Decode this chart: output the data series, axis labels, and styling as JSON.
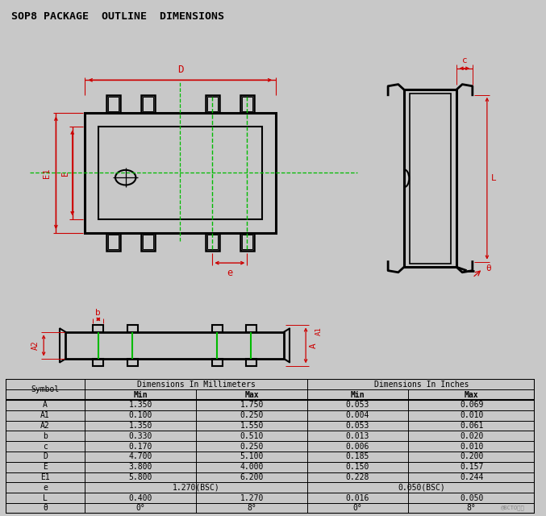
{
  "title": "SOP8 PACKAGE  OUTLINE  DIMENSIONS",
  "bg_color": "#c8c8c8",
  "table_data": [
    [
      "A",
      "1.350",
      "1.750",
      "0.053",
      "0.069"
    ],
    [
      "A1",
      "0.100",
      "0.250",
      "0.004",
      "0.010"
    ],
    [
      "A2",
      "1.350",
      "1.550",
      "0.053",
      "0.061"
    ],
    [
      "b",
      "0.330",
      "0.510",
      "0.013",
      "0.020"
    ],
    [
      "c",
      "0.170",
      "0.250",
      "0.006",
      "0.010"
    ],
    [
      "D",
      "4.700",
      "5.100",
      "0.185",
      "0.200"
    ],
    [
      "E",
      "3.800",
      "4.000",
      "0.150",
      "0.157"
    ],
    [
      "E1",
      "5.800",
      "6.200",
      "0.228",
      "0.244"
    ],
    [
      "e",
      "1.270(BSC)",
      "",
      "0.050(BSC)",
      ""
    ],
    [
      "L",
      "0.400",
      "1.270",
      "0.016",
      "0.050"
    ],
    [
      "θ",
      "0°",
      "8°",
      "0°",
      "8°"
    ]
  ]
}
